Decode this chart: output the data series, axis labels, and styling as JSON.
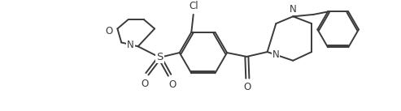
{
  "bg_color": "#ffffff",
  "line_color": "#3a3a3a",
  "line_width": 1.4,
  "fig_width": 4.93,
  "fig_height": 1.37,
  "dpi": 100,
  "xlim": [
    0.0,
    9.8
  ],
  "ylim": [
    0.0,
    2.74
  ],
  "font_size": 8.5,
  "s_font_size": 9.5
}
